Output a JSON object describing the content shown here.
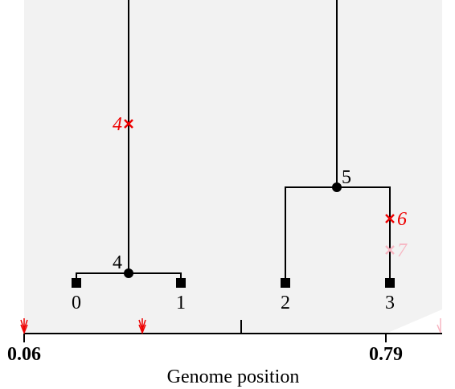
{
  "nodes": [
    {
      "label": "0"
    },
    {
      "label": "1"
    },
    {
      "label": "2"
    },
    {
      "label": "3"
    },
    {
      "label": "4"
    },
    {
      "label": "5"
    }
  ],
  "mutations": [
    {
      "label": "4"
    },
    {
      "label": "6"
    },
    {
      "label": "7"
    }
  ],
  "axis": {
    "ticks": [
      "0.06",
      "0.79"
    ],
    "label": "Genome position"
  }
}
